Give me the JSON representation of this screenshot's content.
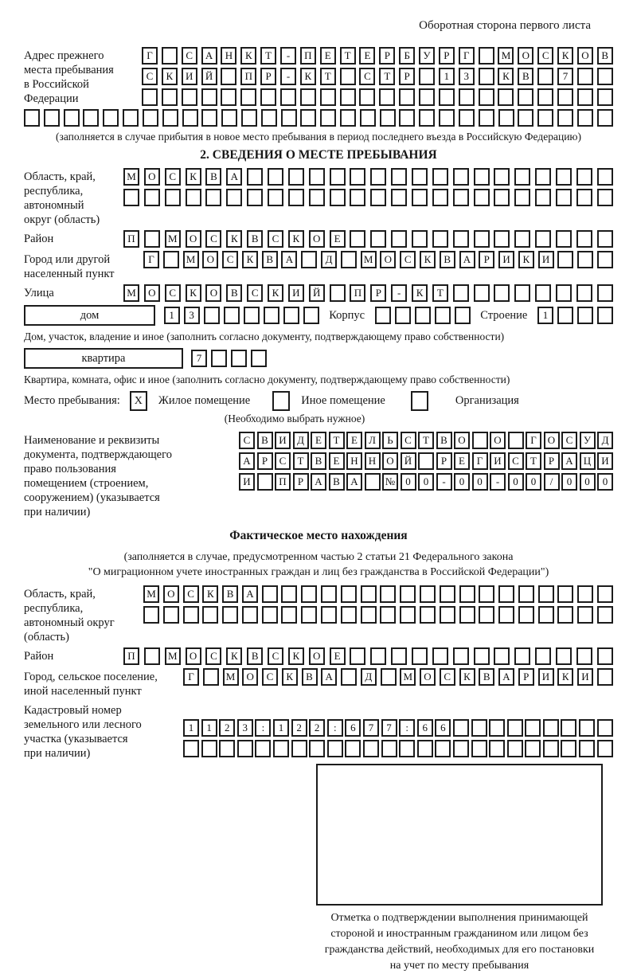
{
  "header": {
    "note": "Оборотная сторона первого листа"
  },
  "prev_address": {
    "label": "Адрес прежнего\nместа пребывания\nв Российской\nФедерации",
    "rows": [
      {
        "len": 24,
        "text": "Г САНКТ-ПЕТЕРБУРГ МОСКОВ"
      },
      {
        "len": 24,
        "text": "СКИЙ ПР-КТ СТР 13 КВ 7"
      },
      {
        "len": 24,
        "text": ""
      },
      {
        "len": 30,
        "text": ""
      }
    ],
    "footnote": "(заполняется в случае прибытия в новое место пребывания в период последнего въезда в Российскую Федерацию)"
  },
  "section2": {
    "title": "2. СВЕДЕНИЯ О МЕСТЕ ПРЕБЫВАНИЯ",
    "oblast": {
      "label": "Область, край,\nреспублика,\nавтономный\nокруг (область)",
      "rows": [
        {
          "len": 24,
          "text": "МОСКВА"
        },
        {
          "len": 24,
          "text": ""
        }
      ]
    },
    "raion": {
      "label": "Район",
      "row": {
        "len": 24,
        "text": "П МОСКВСКОЕ"
      }
    },
    "gorod": {
      "label": "Город или другой\nнаселенный пункт",
      "row": {
        "len": 24,
        "text": "Г МОСКВА Д МОСКВАРИКИ"
      }
    },
    "ulitsa": {
      "label": "Улица",
      "row": {
        "len": 24,
        "text": "МОСКОВСКИЙ ПР-КТ"
      }
    },
    "dom": {
      "box_label": "дом",
      "house": {
        "len": 8,
        "text": "13"
      },
      "korpus_label": "Корпус",
      "korpus": {
        "len": 5,
        "text": ""
      },
      "stroenie_label": "Строение",
      "stroenie": {
        "len": 4,
        "text": "1"
      },
      "footnote": "Дом, участок, владение и иное (заполнить согласно документу, подтверждающему право собственности)"
    },
    "kvartira": {
      "box_label": "квартира",
      "cells": {
        "len": 4,
        "text": "7"
      },
      "footnote": "Квартира, комната, офис и иное (заполнить согласно документу, подтверждающему право собственности)"
    },
    "mesto": {
      "label": "Место пребывания:",
      "options": [
        {
          "label": "Жилое помещение",
          "mark": "X"
        },
        {
          "label": "Иное помещение",
          "mark": ""
        },
        {
          "label": "Организация",
          "mark": ""
        }
      ],
      "note": "(Необходимо выбрать нужное)"
    },
    "doc": {
      "label": "Наименование и реквизиты\nдокумента, подтверждающего\nправо пользования\nпомещением (строением,\nсооружением) (указывается\nпри наличии)",
      "rows": [
        {
          "len": 21,
          "text": "СВИДЕТЕЛЬСТВО О ГОСУД"
        },
        {
          "len": 21,
          "text": "АРСТВЕННОЙ РЕГИСТРАЦИ"
        },
        {
          "len": 21,
          "text": "И ПРАВА №00-00-00/000"
        }
      ]
    }
  },
  "section3": {
    "title": "Фактическое место нахождения",
    "note": "(заполняется в случае, предусмотренном частью 2 статьи 21 Федерального закона\n\"О миграционном учете иностранных граждан и лиц без гражданства в Российской Федерации\")",
    "oblast": {
      "label": "Область, край,\nреспублика,\nавтономный округ\n(область)",
      "rows": [
        {
          "len": 24,
          "text": "МОСКВА"
        },
        {
          "len": 24,
          "text": ""
        }
      ]
    },
    "raion": {
      "label": "Район",
      "row": {
        "len": 24,
        "text": "П МОСКВСКОЕ"
      }
    },
    "gorod": {
      "label": "Город, сельское поселение,\nиной населенный пункт",
      "row": {
        "len": 22,
        "text": "Г МОСКВА Д МОСКВАРИКИ"
      }
    },
    "kadastr": {
      "label": "Кадастровый номер\nземельного или лесного\nучастка (указывается\nпри наличии)",
      "rows": [
        {
          "len": 24,
          "text": "1123:122:677:66"
        },
        {
          "len": 24,
          "text": ""
        }
      ]
    },
    "stamp": {
      "caption": "Отметка о подтверждении выполнения принимающей\nстороной и иностранным гражданином или лицом без\nгражданства действий, необходимых для его постановки\nна учет по месту пребывания"
    }
  }
}
